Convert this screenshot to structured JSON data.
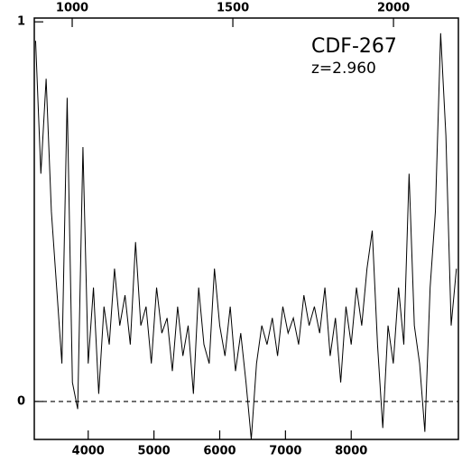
{
  "chart_data": {
    "type": "line",
    "annotations": [
      "CDF-267",
      "z=2.960"
    ],
    "x": [
      3200,
      3280,
      3360,
      3440,
      3520,
      3600,
      3680,
      3760,
      3840,
      3920,
      4000,
      4080,
      4160,
      4240,
      4320,
      4400,
      4480,
      4560,
      4640,
      4720,
      4800,
      4880,
      4960,
      5040,
      5120,
      5200,
      5280,
      5360,
      5440,
      5520,
      5600,
      5680,
      5760,
      5840,
      5920,
      6000,
      6080,
      6160,
      6240,
      6320,
      6400,
      6480,
      6560,
      6640,
      6720,
      6800,
      6880,
      6960,
      7040,
      7120,
      7200,
      7280,
      7360,
      7440,
      7520,
      7600,
      7680,
      7760,
      7840,
      7920,
      8000,
      8080,
      8160,
      8240,
      8320,
      8400,
      8480,
      8560,
      8640,
      8720,
      8800,
      8880,
      8960,
      9040,
      9120,
      9200,
      9280,
      9360,
      9440,
      9520,
      9600
    ],
    "series": [
      {
        "color": "#000000",
        "values": [
          0.95,
          0.6,
          0.85,
          0.5,
          0.3,
          0.1,
          0.8,
          0.05,
          -0.02,
          0.67,
          0.1,
          0.3,
          0.02,
          0.25,
          0.15,
          0.35,
          0.2,
          0.28,
          0.15,
          0.42,
          0.2,
          0.25,
          0.1,
          0.3,
          0.18,
          0.22,
          0.08,
          0.25,
          0.12,
          0.2,
          0.02,
          0.3,
          0.15,
          0.1,
          0.35,
          0.2,
          0.12,
          0.25,
          0.08,
          0.18,
          0.05,
          -0.1,
          0.1,
          0.2,
          0.15,
          0.22,
          0.12,
          0.25,
          0.18,
          0.22,
          0.15,
          0.28,
          0.2,
          0.25,
          0.18,
          0.3,
          0.12,
          0.22,
          0.05,
          0.25,
          0.15,
          0.3,
          0.2,
          0.35,
          0.45,
          0.15,
          -0.07,
          0.2,
          0.1,
          0.3,
          0.15,
          0.6,
          0.2,
          0.1,
          -0.08,
          0.3,
          0.5,
          0.97,
          0.7,
          0.2,
          0.35
        ]
      }
    ],
    "xlim": [
      3180,
      9630
    ],
    "xticks": [
      4000,
      5000,
      6000,
      7000,
      8000
    ],
    "x2lim": [
      882,
      2202
    ],
    "x2ticks": [
      1000,
      1500,
      2000
    ],
    "ylim": [
      -0.1,
      1.01
    ],
    "yticks": [
      0,
      1
    ],
    "zero_line": true
  }
}
